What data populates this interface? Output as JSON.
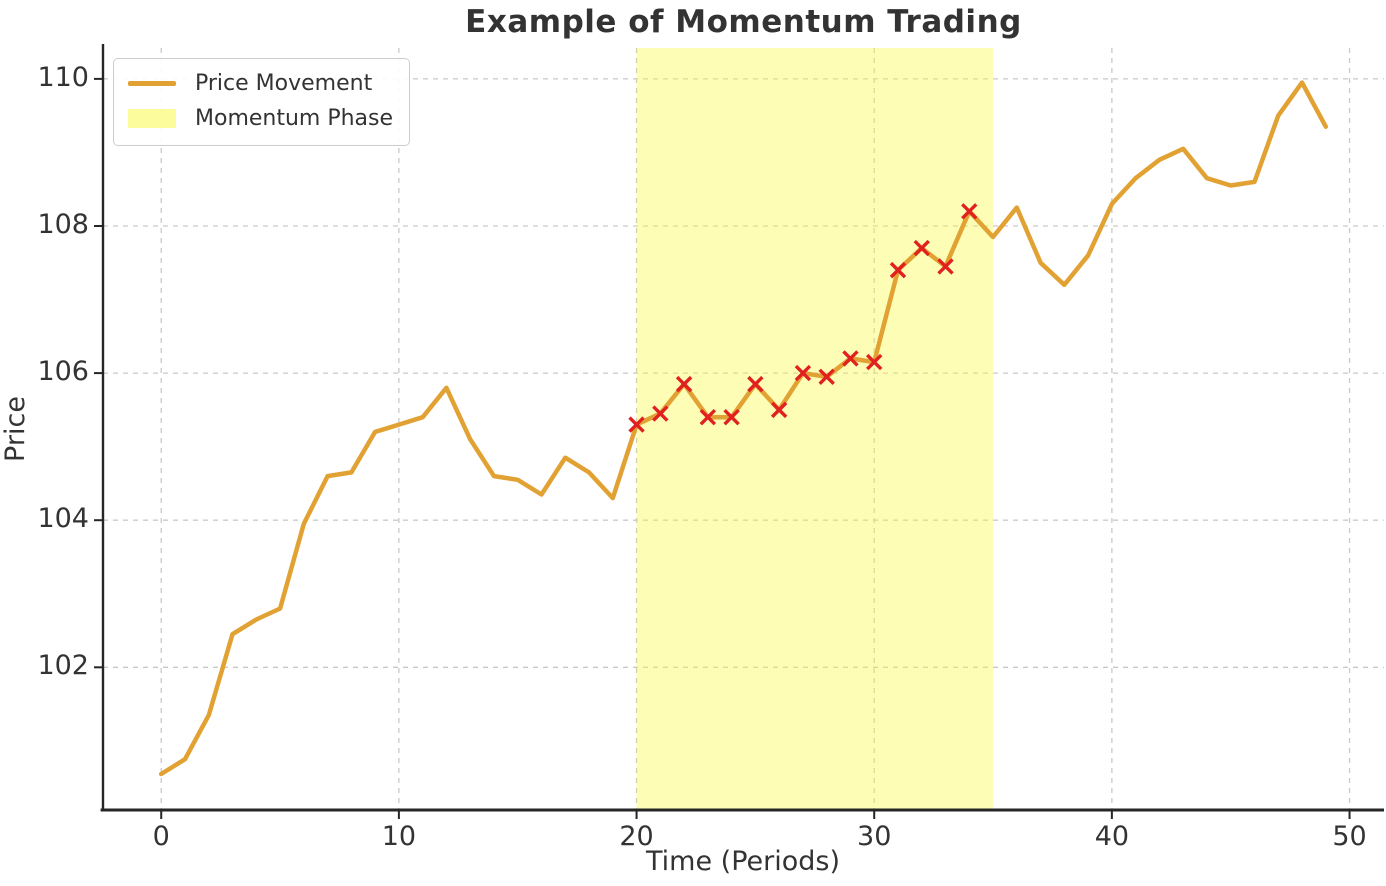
{
  "chart_data": {
    "type": "line",
    "title": "Example of Momentum Trading",
    "xlabel": "Time (Periods)",
    "ylabel": "Price",
    "x": [
      0,
      1,
      2,
      3,
      4,
      5,
      6,
      7,
      8,
      9,
      10,
      11,
      12,
      13,
      14,
      15,
      16,
      17,
      18,
      19,
      20,
      21,
      22,
      23,
      24,
      25,
      26,
      27,
      28,
      29,
      30,
      31,
      32,
      33,
      34,
      35,
      36,
      37,
      38,
      39,
      40,
      41,
      42,
      43,
      44,
      45,
      46,
      47,
      48,
      49
    ],
    "series": [
      {
        "name": "Price Movement",
        "color": "#E1A233",
        "values": [
          100.55,
          100.75,
          101.35,
          102.45,
          102.65,
          102.8,
          103.95,
          104.6,
          104.65,
          105.2,
          105.3,
          105.4,
          105.8,
          105.1,
          104.6,
          104.55,
          104.35,
          104.85,
          104.65,
          104.3,
          105.3,
          105.45,
          105.85,
          105.4,
          105.4,
          105.85,
          105.5,
          106.0,
          105.95,
          106.2,
          106.15,
          107.4,
          107.7,
          107.45,
          108.2,
          107.85,
          108.25,
          107.5,
          107.2,
          107.6,
          108.3,
          108.65,
          108.9,
          109.05,
          108.65,
          108.55,
          108.6,
          109.5,
          109.95,
          109.35
        ]
      }
    ],
    "markers": {
      "shape": "x",
      "color": "#E12120",
      "x": [
        20,
        21,
        22,
        23,
        24,
        25,
        26,
        27,
        28,
        29,
        30,
        31,
        32,
        33,
        34
      ]
    },
    "momentum_phase": {
      "label": "Momentum Phase",
      "x_start": 20,
      "x_end": 35,
      "fill": "rgba(250,250,60,0.38)"
    },
    "xticks": [
      0,
      10,
      20,
      30,
      40,
      50
    ],
    "yticks": [
      102,
      104,
      106,
      108,
      110
    ],
    "xlim": [
      -2.45,
      51.45
    ],
    "ylim": [
      100.06,
      110.42
    ],
    "grid": true,
    "grid_color": "#c9c9c9",
    "spine_color": "#262626",
    "legend": {
      "position": "upper-left",
      "entries": [
        {
          "label": "Price Movement",
          "swatch": "line",
          "color": "#E1A233"
        },
        {
          "label": "Momentum Phase",
          "swatch": "patch",
          "color": "rgba(250,250,60,0.5)"
        }
      ]
    }
  }
}
